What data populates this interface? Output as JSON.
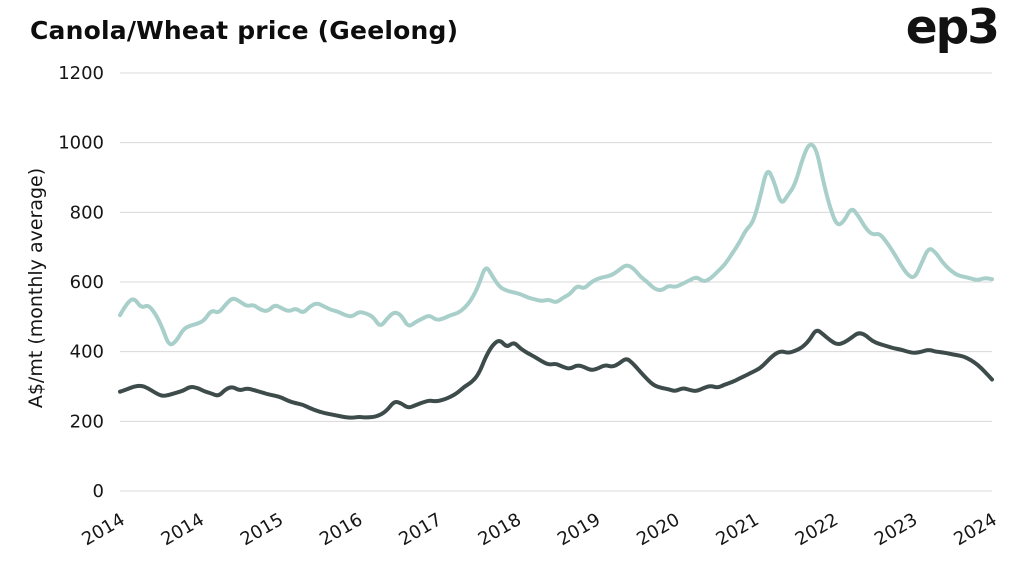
{
  "header": {
    "title": "Canola/Wheat price (Geelong)",
    "logo": "ep3"
  },
  "chart_data": {
    "type": "line",
    "title": "Canola/Wheat price (Geelong)",
    "xlabel": "",
    "ylabel": "A$/mt (monthly average)",
    "ylim": [
      0,
      1200
    ],
    "yticks": [
      0,
      200,
      400,
      600,
      800,
      1000,
      1200
    ],
    "xticklabels": [
      "2014",
      "2014",
      "2015",
      "2016",
      "2017",
      "2018",
      "2019",
      "2020",
      "2021",
      "2022",
      "2023",
      "2024"
    ],
    "grid": "horizontal",
    "legend_position": "none",
    "x_start": "2014-01",
    "x_end": "2024-05",
    "x_frequency": "monthly",
    "series": [
      {
        "name": "Canola",
        "color": "#a9cfca",
        "values": [
          505,
          540,
          555,
          525,
          535,
          510,
          470,
          415,
          430,
          465,
          475,
          480,
          490,
          520,
          510,
          535,
          555,
          545,
          530,
          535,
          520,
          515,
          535,
          525,
          515,
          525,
          510,
          530,
          540,
          530,
          520,
          515,
          505,
          500,
          515,
          510,
          500,
          470,
          495,
          515,
          505,
          470,
          485,
          495,
          505,
          490,
          495,
          505,
          510,
          525,
          550,
          590,
          650,
          615,
          585,
          575,
          570,
          565,
          555,
          550,
          545,
          550,
          540,
          555,
          565,
          590,
          580,
          600,
          610,
          615,
          620,
          635,
          650,
          640,
          615,
          600,
          580,
          575,
          590,
          585,
          595,
          605,
          615,
          600,
          610,
          630,
          650,
          680,
          710,
          750,
          770,
          840,
          930,
          890,
          820,
          850,
          880,
          950,
          1000,
          985,
          890,
          810,
          760,
          775,
          815,
          790,
          755,
          735,
          740,
          715,
          685,
          650,
          620,
          610,
          655,
          700,
          685,
          655,
          635,
          620,
          615,
          610,
          605,
          612,
          608
        ]
      },
      {
        "name": "Wheat",
        "color": "#3d4c4a",
        "values": [
          285,
          292,
          300,
          303,
          295,
          282,
          272,
          276,
          282,
          288,
          300,
          296,
          286,
          280,
          272,
          292,
          300,
          288,
          295,
          290,
          284,
          278,
          274,
          268,
          258,
          252,
          248,
          238,
          230,
          224,
          220,
          216,
          212,
          210,
          213,
          211,
          212,
          218,
          232,
          258,
          252,
          238,
          246,
          254,
          260,
          257,
          262,
          270,
          282,
          300,
          312,
          335,
          385,
          420,
          435,
          412,
          428,
          408,
          395,
          385,
          372,
          362,
          366,
          356,
          350,
          362,
          356,
          346,
          352,
          362,
          356,
          366,
          382,
          365,
          342,
          320,
          302,
          296,
          292,
          286,
          296,
          290,
          286,
          296,
          302,
          296,
          306,
          312,
          322,
          332,
          342,
          352,
          372,
          392,
          402,
          396,
          402,
          412,
          432,
          465,
          450,
          432,
          420,
          426,
          440,
          455,
          448,
          430,
          422,
          416,
          410,
          406,
          400,
          396,
          400,
          406,
          400,
          398,
          394,
          390,
          386,
          376,
          362,
          342,
          320
        ]
      }
    ],
    "style": {
      "grid_color": "#d8d8d8",
      "tick_label_color": "#161616",
      "line_width": 4
    }
  }
}
